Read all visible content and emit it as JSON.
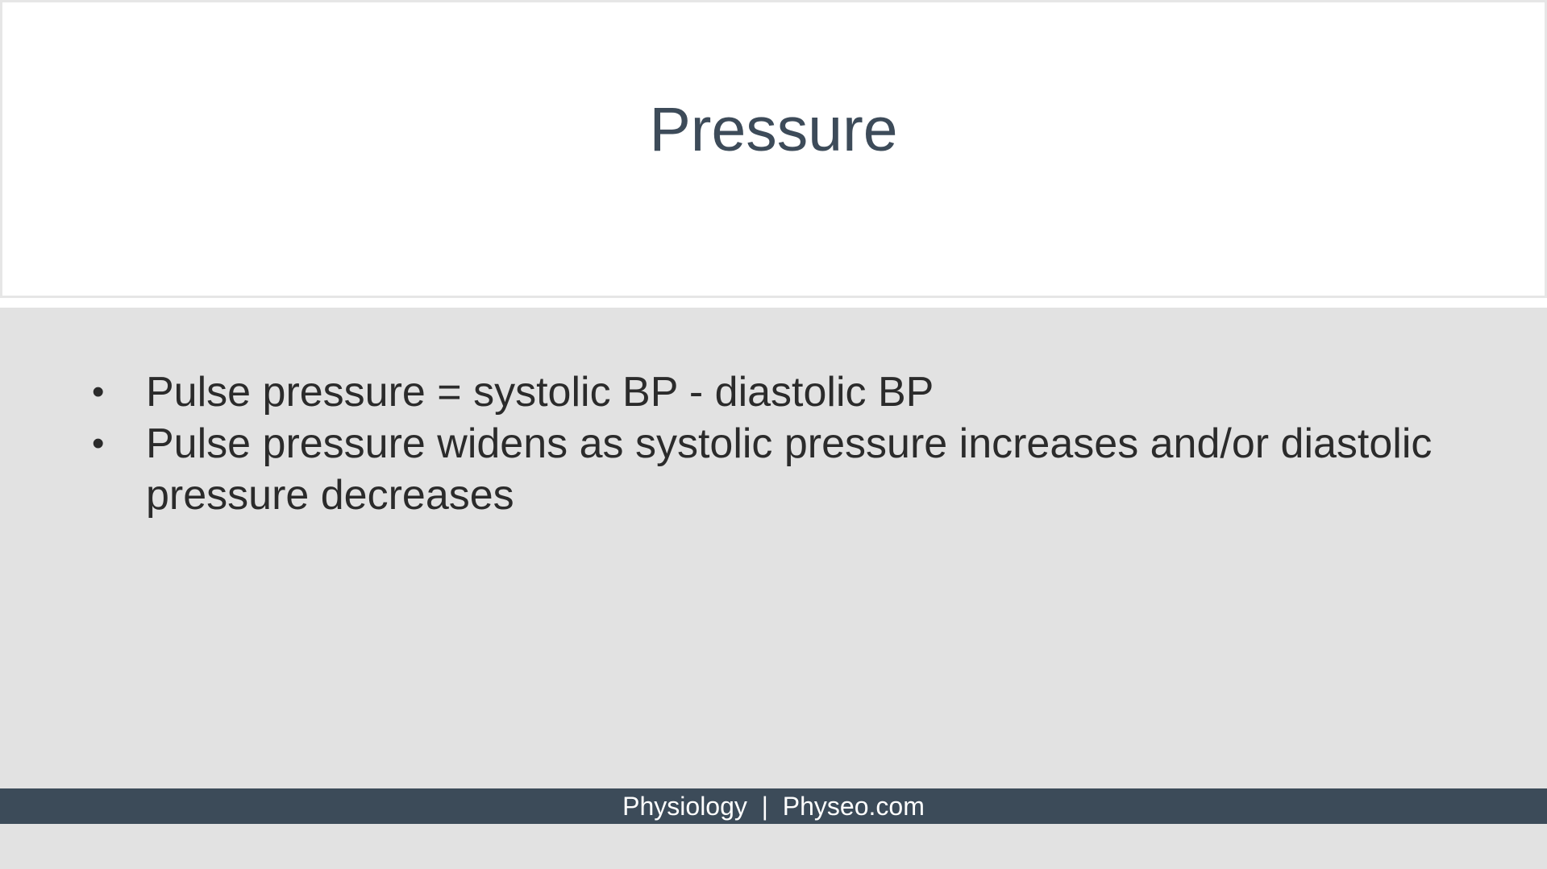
{
  "slide": {
    "title": "Pressure",
    "bullets": [
      "Pulse pressure = systolic BP - diastolic BP",
      "Pulse pressure widens as systolic pressure increases and/or diastolic pressure decreases"
    ],
    "bullet_glyph": "•",
    "footer": "Physiology  |  Physeo.com"
  },
  "colors": {
    "title_text": "#3d4b59",
    "body_background": "#e2e2e2",
    "footer_background": "#3c4b59",
    "footer_text": "#ffffff"
  }
}
